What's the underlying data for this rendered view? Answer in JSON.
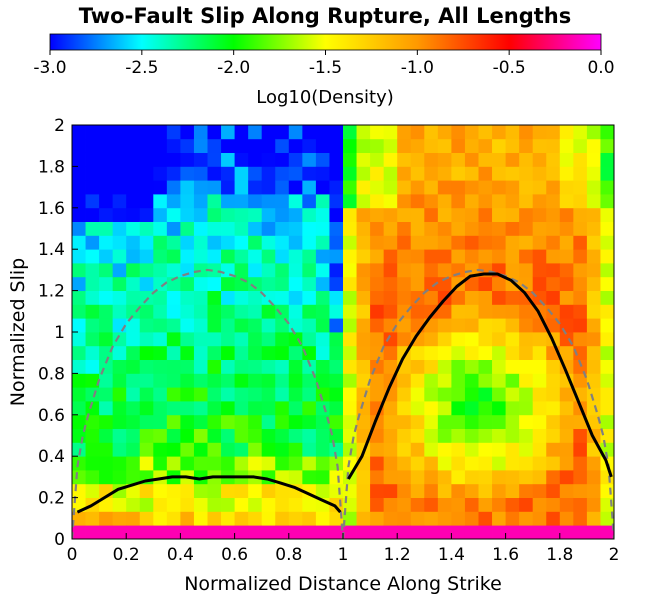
{
  "chart_data": {
    "type": "heatmap",
    "title": "Two-Fault Slip Along Rupture, All Lengths",
    "xlabel": "Normalized Distance Along Strike",
    "ylabel": "Normalized Slip",
    "xlim": [
      0,
      2
    ],
    "ylim": [
      0,
      2
    ],
    "x_ticks": [
      "0",
      "0.2",
      "0.4",
      "0.6",
      "0.8",
      "1",
      "1.2",
      "1.4",
      "1.6",
      "1.8",
      "2"
    ],
    "y_ticks": [
      "0",
      "0.2",
      "0.4",
      "0.6",
      "0.8",
      "1",
      "1.2",
      "1.4",
      "1.6",
      "1.8",
      "2"
    ],
    "colorbar": {
      "label": "Log10(Density)",
      "range": [
        -3.0,
        0.0
      ],
      "ticks": [
        "-3.0",
        "-2.5",
        "-2.0",
        "-1.5",
        "-1.0",
        "-0.5",
        "0.0"
      ],
      "colors": [
        "#0000ff",
        "#00ffff",
        "#00ff00",
        "#ffff00",
        "#ff9900",
        "#ff0000",
        "#ff00ff"
      ]
    },
    "grid": {
      "nx": 40,
      "ny": 30
    },
    "series": [
      {
        "kind": "mean-slip",
        "color": "#000000",
        "style": "solid",
        "segments": [
          [
            [
              0.02,
              0.13
            ],
            [
              0.07,
              0.16
            ],
            [
              0.12,
              0.2
            ],
            [
              0.17,
              0.24
            ],
            [
              0.22,
              0.26
            ],
            [
              0.27,
              0.28
            ],
            [
              0.32,
              0.29
            ],
            [
              0.37,
              0.3
            ],
            [
              0.42,
              0.3
            ],
            [
              0.47,
              0.29
            ],
            [
              0.52,
              0.3
            ],
            [
              0.57,
              0.3
            ],
            [
              0.62,
              0.3
            ],
            [
              0.67,
              0.3
            ],
            [
              0.72,
              0.29
            ],
            [
              0.77,
              0.27
            ],
            [
              0.82,
              0.25
            ],
            [
              0.87,
              0.22
            ],
            [
              0.92,
              0.19
            ],
            [
              0.97,
              0.16
            ],
            [
              0.99,
              0.13
            ]
          ],
          [
            [
              1.02,
              0.29
            ],
            [
              1.07,
              0.4
            ],
            [
              1.12,
              0.57
            ],
            [
              1.17,
              0.73
            ],
            [
              1.22,
              0.87
            ],
            [
              1.27,
              0.98
            ],
            [
              1.32,
              1.07
            ],
            [
              1.37,
              1.15
            ],
            [
              1.42,
              1.22
            ],
            [
              1.47,
              1.27
            ],
            [
              1.52,
              1.28
            ],
            [
              1.57,
              1.28
            ],
            [
              1.62,
              1.25
            ],
            [
              1.67,
              1.19
            ],
            [
              1.72,
              1.1
            ],
            [
              1.77,
              0.97
            ],
            [
              1.82,
              0.82
            ],
            [
              1.87,
              0.66
            ],
            [
              1.92,
              0.5
            ],
            [
              1.97,
              0.38
            ],
            [
              1.99,
              0.3
            ]
          ]
        ]
      },
      {
        "kind": "reference-profile",
        "color": "#808080",
        "style": "dashed",
        "segments": [
          [
            [
              0.0,
              0.0
            ],
            [
              0.02,
              0.35
            ],
            [
              0.04,
              0.5
            ],
            [
              0.06,
              0.6
            ],
            [
              0.1,
              0.77
            ],
            [
              0.15,
              0.93
            ],
            [
              0.2,
              1.04
            ],
            [
              0.25,
              1.12
            ],
            [
              0.3,
              1.19
            ],
            [
              0.35,
              1.24
            ],
            [
              0.4,
              1.27
            ],
            [
              0.45,
              1.29
            ],
            [
              0.5,
              1.3
            ],
            [
              0.55,
              1.29
            ],
            [
              0.6,
              1.27
            ],
            [
              0.65,
              1.24
            ],
            [
              0.7,
              1.19
            ],
            [
              0.75,
              1.12
            ],
            [
              0.8,
              1.04
            ],
            [
              0.85,
              0.93
            ],
            [
              0.9,
              0.77
            ],
            [
              0.94,
              0.6
            ],
            [
              0.96,
              0.5
            ],
            [
              0.98,
              0.35
            ],
            [
              1.0,
              0.0
            ]
          ],
          [
            [
              1.0,
              0.0
            ],
            [
              1.02,
              0.35
            ],
            [
              1.04,
              0.5
            ],
            [
              1.06,
              0.6
            ],
            [
              1.1,
              0.77
            ],
            [
              1.15,
              0.93
            ],
            [
              1.2,
              1.04
            ],
            [
              1.25,
              1.12
            ],
            [
              1.3,
              1.19
            ],
            [
              1.35,
              1.24
            ],
            [
              1.4,
              1.27
            ],
            [
              1.45,
              1.29
            ],
            [
              1.5,
              1.3
            ],
            [
              1.55,
              1.29
            ],
            [
              1.6,
              1.27
            ],
            [
              1.65,
              1.24
            ],
            [
              1.7,
              1.19
            ],
            [
              1.75,
              1.12
            ],
            [
              1.8,
              1.04
            ],
            [
              1.85,
              0.93
            ],
            [
              1.9,
              0.77
            ],
            [
              1.94,
              0.6
            ],
            [
              1.96,
              0.5
            ],
            [
              1.98,
              0.35
            ],
            [
              2.0,
              0.0
            ]
          ]
        ]
      }
    ]
  }
}
